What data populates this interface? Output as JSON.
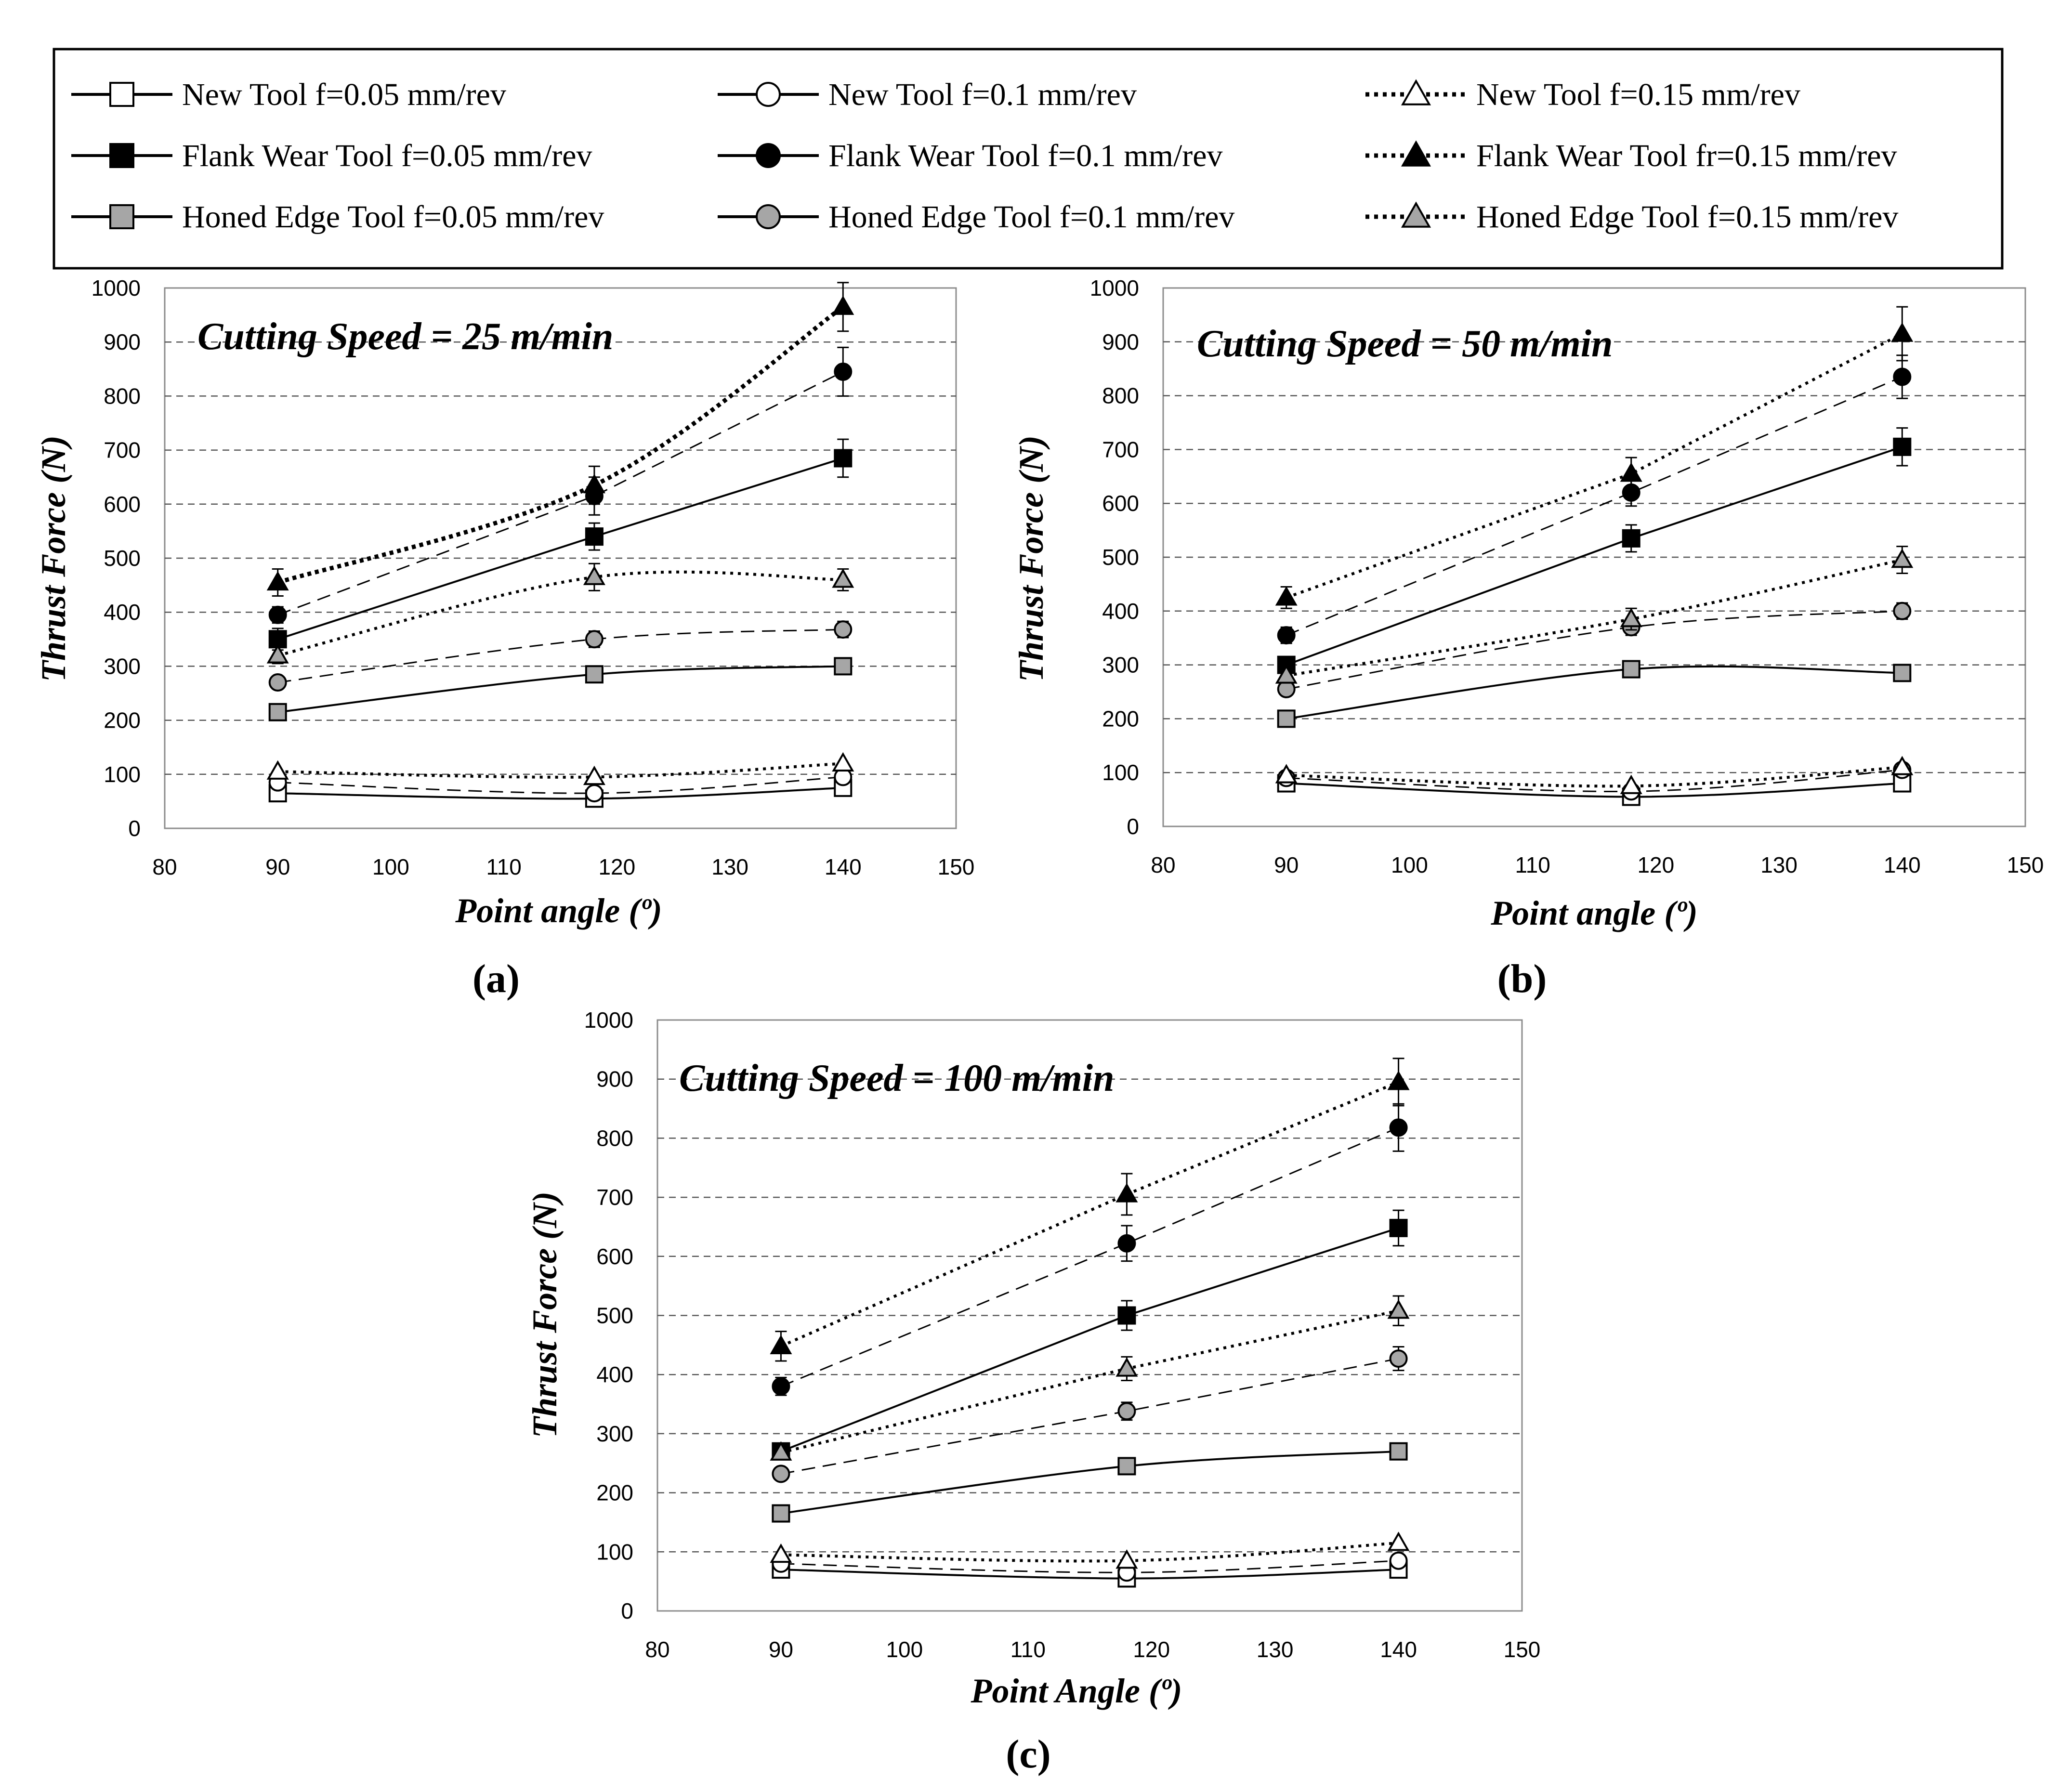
{
  "legend": [
    {
      "label": "New Tool f=0.05 mm/rev",
      "marker": "square",
      "fill": "#ffffff",
      "line": "solid"
    },
    {
      "label": "New Tool f=0.1 mm/rev",
      "marker": "circle",
      "fill": "#ffffff",
      "line": "solid"
    },
    {
      "label": "New Tool f=0.15 mm/rev",
      "marker": "triangle",
      "fill": "#ffffff",
      "line": "dotted"
    },
    {
      "label": "Flank Wear Tool f=0.05 mm/rev",
      "marker": "square",
      "fill": "#000000",
      "line": "solid"
    },
    {
      "label": "Flank Wear Tool f=0.1 mm/rev",
      "marker": "circle",
      "fill": "#000000",
      "line": "solid"
    },
    {
      "label": "Flank Wear Tool fr=0.15 mm/rev",
      "marker": "triangle",
      "fill": "#000000",
      "line": "dotted"
    },
    {
      "label": "Honed Edge Tool f=0.05 mm/rev",
      "marker": "square",
      "fill": "#a6a6a6",
      "line": "solid"
    },
    {
      "label": "Honed Edge Tool f=0.1 mm/rev",
      "marker": "circle",
      "fill": "#a6a6a6",
      "line": "solid"
    },
    {
      "label": "Honed Edge Tool f=0.15 mm/rev",
      "marker": "triangle",
      "fill": "#a6a6a6",
      "line": "dotted"
    }
  ],
  "chart_data": [
    {
      "type": "line",
      "panel": "(a)",
      "title": "Cutting Speed = 25 m/min",
      "xlabel": "Point angle (º)",
      "ylabel": "Thrust Force (N)",
      "xlim": [
        80,
        150
      ],
      "ylim": [
        0,
        1000
      ],
      "xticks": [
        "80",
        "90",
        "100",
        "110",
        "120",
        "130",
        "140",
        "150"
      ],
      "yticks": [
        "0",
        "100",
        "200",
        "300",
        "400",
        "500",
        "600",
        "700",
        "800",
        "900",
        "1000"
      ],
      "grid": "horizontal dashed",
      "x": [
        90,
        118,
        140
      ],
      "series": [
        {
          "name": "New Tool f=0.05 mm/rev",
          "values": [
            65,
            55,
            75
          ],
          "marker": "square",
          "fill": "#ffffff",
          "dash": "solid",
          "smooth": true
        },
        {
          "name": "New Tool f=0.1 mm/rev",
          "values": [
            85,
            65,
            95
          ],
          "marker": "circle",
          "fill": "#ffffff",
          "dash": "dashed",
          "smooth": true
        },
        {
          "name": "New Tool f=0.15 mm/rev",
          "values": [
            105,
            95,
            120
          ],
          "marker": "triangle",
          "fill": "#ffffff",
          "dash": "dotted",
          "smooth": true
        },
        {
          "name": "Flank Wear Tool f=0.05 mm/rev",
          "values": [
            350,
            540,
            685
          ],
          "errors": [
            20,
            25,
            35
          ],
          "marker": "square",
          "fill": "#000000",
          "dash": "solid"
        },
        {
          "name": "Flank Wear Tool f=0.1 mm/rev",
          "values": [
            395,
            615,
            845
          ],
          "errors": [
            15,
            35,
            45
          ],
          "marker": "circle",
          "fill": "#000000",
          "dash": "dashed"
        },
        {
          "name": "Flank Wear Tool fr=0.15 mm/rev",
          "values": [
            455,
            635,
            965
          ],
          "errors": [
            25,
            35,
            45
          ],
          "marker": "triangle",
          "fill": "#000000",
          "dash": "dotted-bold",
          "smooth": true
        },
        {
          "name": "Honed Edge Tool f=0.05 mm/rev",
          "values": [
            215,
            285,
            300
          ],
          "marker": "square",
          "fill": "#a6a6a6",
          "dash": "solid",
          "smooth": true
        },
        {
          "name": "Honed Edge Tool f=0.1 mm/rev",
          "values": [
            270,
            350,
            368
          ],
          "errors": [
            10,
            15,
            15
          ],
          "marker": "circle",
          "fill": "#a6a6a6",
          "dash": "dashed",
          "smooth": true
        },
        {
          "name": "Honed Edge Tool f=0.15 mm/rev",
          "values": [
            320,
            465,
            460
          ],
          "errors": [
            15,
            25,
            20
          ],
          "marker": "triangle",
          "fill": "#a6a6a6",
          "dash": "dotted",
          "smooth": true
        }
      ]
    },
    {
      "type": "line",
      "panel": "(b)",
      "title": "Cutting Speed = 50 m/min",
      "xlabel": "Point angle (º)",
      "ylabel": "Thrust Force (N)",
      "xlim": [
        80,
        150
      ],
      "ylim": [
        0,
        1000
      ],
      "xticks": [
        "80",
        "90",
        "100",
        "110",
        "120",
        "130",
        "140",
        "150"
      ],
      "yticks": [
        "0",
        "100",
        "200",
        "300",
        "400",
        "500",
        "600",
        "700",
        "800",
        "900",
        "1000"
      ],
      "grid": "horizontal dashed",
      "x": [
        90,
        118,
        140
      ],
      "series": [
        {
          "name": "New Tool f=0.05 mm/rev",
          "values": [
            80,
            55,
            80
          ],
          "marker": "square",
          "fill": "#ffffff",
          "dash": "solid",
          "smooth": true
        },
        {
          "name": "New Tool f=0.1 mm/rev",
          "values": [
            90,
            65,
            105
          ],
          "marker": "circle",
          "fill": "#ffffff",
          "dash": "dashed",
          "smooth": true
        },
        {
          "name": "New Tool f=0.15 mm/rev",
          "values": [
            95,
            75,
            110
          ],
          "marker": "triangle",
          "fill": "#ffffff",
          "dash": "dotted",
          "smooth": true
        },
        {
          "name": "Flank Wear Tool f=0.05 mm/rev",
          "values": [
            300,
            535,
            705
          ],
          "errors": [
            15,
            25,
            35
          ],
          "marker": "square",
          "fill": "#000000",
          "dash": "solid"
        },
        {
          "name": "Flank Wear Tool f=0.1 mm/rev",
          "values": [
            355,
            620,
            835
          ],
          "errors": [
            15,
            25,
            40
          ],
          "marker": "circle",
          "fill": "#000000",
          "dash": "dashed"
        },
        {
          "name": "Flank Wear Tool fr=0.15 mm/rev",
          "values": [
            425,
            655,
            915
          ],
          "errors": [
            20,
            30,
            50
          ],
          "marker": "triangle",
          "fill": "#000000",
          "dash": "dotted"
        },
        {
          "name": "Honed Edge Tool f=0.05 mm/rev",
          "values": [
            200,
            292,
            285
          ],
          "marker": "square",
          "fill": "#a6a6a6",
          "dash": "solid",
          "smooth": true
        },
        {
          "name": "Honed Edge Tool f=0.1 mm/rev",
          "values": [
            255,
            370,
            400
          ],
          "errors": [
            10,
            15,
            15
          ],
          "marker": "circle",
          "fill": "#a6a6a6",
          "dash": "dashed",
          "smooth": true
        },
        {
          "name": "Honed Edge Tool f=0.15 mm/rev",
          "values": [
            280,
            385,
            495
          ],
          "errors": [
            10,
            20,
            25
          ],
          "marker": "triangle",
          "fill": "#a6a6a6",
          "dash": "dotted",
          "smooth": true
        }
      ]
    },
    {
      "type": "line",
      "panel": "(c)",
      "title": "Cutting Speed = 100 m/min",
      "xlabel": "Point Angle (º)",
      "ylabel": "Thrust Force (N)",
      "xlim": [
        80,
        150
      ],
      "ylim": [
        0,
        1000
      ],
      "xticks": [
        "80",
        "90",
        "100",
        "110",
        "120",
        "130",
        "140",
        "150"
      ],
      "yticks": [
        "0",
        "100",
        "200",
        "300",
        "400",
        "500",
        "600",
        "700",
        "800",
        "900",
        "1000"
      ],
      "grid": "horizontal dashed",
      "x": [
        90,
        118,
        140
      ],
      "series": [
        {
          "name": "New Tool f=0.05 mm/rev",
          "values": [
            70,
            55,
            70
          ],
          "marker": "square",
          "fill": "#ffffff",
          "dash": "solid",
          "smooth": true
        },
        {
          "name": "New Tool f=0.1 mm/rev",
          "values": [
            80,
            65,
            85
          ],
          "marker": "circle",
          "fill": "#ffffff",
          "dash": "dashed",
          "smooth": true
        },
        {
          "name": "New Tool f=0.15 mm/rev",
          "values": [
            95,
            85,
            115
          ],
          "marker": "triangle",
          "fill": "#ffffff",
          "dash": "dotted",
          "smooth": true
        },
        {
          "name": "Flank Wear Tool f=0.05 mm/rev",
          "values": [
            270,
            500,
            648
          ],
          "errors": [
            10,
            25,
            30
          ],
          "marker": "square",
          "fill": "#000000",
          "dash": "solid"
        },
        {
          "name": "Flank Wear Tool f=0.1 mm/rev",
          "values": [
            380,
            622,
            818
          ],
          "errors": [
            15,
            30,
            40
          ],
          "marker": "circle",
          "fill": "#000000",
          "dash": "dashed"
        },
        {
          "name": "Flank Wear Tool fr=0.15 mm/rev",
          "values": [
            448,
            705,
            895
          ],
          "errors": [
            25,
            35,
            40
          ],
          "marker": "triangle",
          "fill": "#000000",
          "dash": "dotted"
        },
        {
          "name": "Honed Edge Tool f=0.05 mm/rev",
          "values": [
            165,
            245,
            270
          ],
          "marker": "square",
          "fill": "#a6a6a6",
          "dash": "solid",
          "smooth": true
        },
        {
          "name": "Honed Edge Tool f=0.1 mm/rev",
          "values": [
            232,
            338,
            427
          ],
          "errors": [
            10,
            15,
            20
          ],
          "marker": "circle",
          "fill": "#a6a6a6",
          "dash": "dashed"
        },
        {
          "name": "Honed Edge Tool f=0.15 mm/rev",
          "values": [
            268,
            410,
            508
          ],
          "errors": [
            10,
            20,
            25
          ],
          "marker": "triangle",
          "fill": "#a6a6a6",
          "dash": "dotted"
        }
      ]
    }
  ]
}
